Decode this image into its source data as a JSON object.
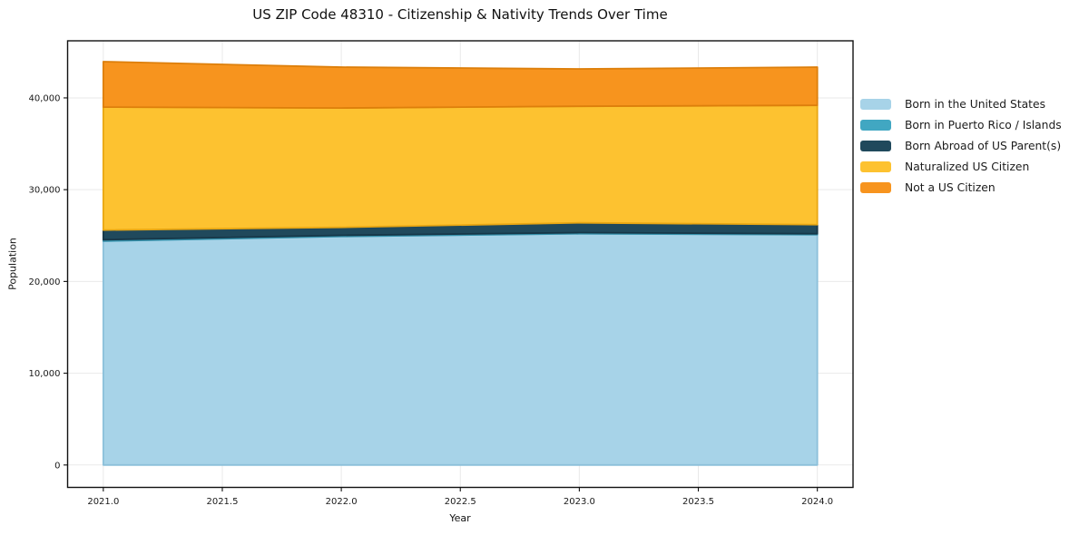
{
  "chart_data": {
    "type": "area",
    "stacked": true,
    "title": "US ZIP Code 48310 - Citizenship & Nativity Trends Over Time",
    "xlabel": "Year",
    "ylabel": "Population",
    "x": [
      2021,
      2022,
      2023,
      2024
    ],
    "series": [
      {
        "name": "Born in the United States",
        "color": "#a7d3e8",
        "edge_color": "#8cc0da",
        "values": [
          24400,
          24900,
          25200,
          25100
        ]
      },
      {
        "name": "Born in Puerto Rico / Islands",
        "color": "#41a7c2",
        "edge_color": "#338fa9",
        "values": [
          150,
          130,
          120,
          100
        ]
      },
      {
        "name": "Born Abroad of US Parent(s)",
        "color": "#20495c",
        "edge_color": "#173748",
        "values": [
          1050,
          870,
          1070,
          990
        ]
      },
      {
        "name": "Naturalized US Citizen",
        "color": "#fdc230",
        "edge_color": "#e9a713",
        "values": [
          13400,
          13000,
          12700,
          13000
        ]
      },
      {
        "name": "Not a US Citizen",
        "color": "#f7941e",
        "edge_color": "#dd7f0b",
        "values": [
          4950,
          4450,
          4060,
          4160
        ]
      }
    ],
    "totals": [
      43950,
      43350,
      43150,
      43350
    ],
    "x_ticks": [
      2021.0,
      2021.5,
      2022.0,
      2022.5,
      2023.0,
      2023.5,
      2024.0
    ],
    "x_tick_labels": [
      "2021.0",
      "2021.5",
      "2022.0",
      "2022.5",
      "2023.0",
      "2023.5",
      "2024.0"
    ],
    "y_ticks": [
      0,
      10000,
      20000,
      30000,
      40000
    ],
    "y_tick_labels": [
      "0",
      "10,000",
      "20,000",
      "30,000",
      "40,000"
    ],
    "xlim": [
      2020.85,
      2024.15
    ],
    "ylim": [
      -2440,
      46220
    ],
    "grid": true,
    "grid_color": "#e9e9e9",
    "spine_color": "#111111",
    "tick_label_color": "#1a1a1a",
    "legend_position": "outside-right"
  }
}
